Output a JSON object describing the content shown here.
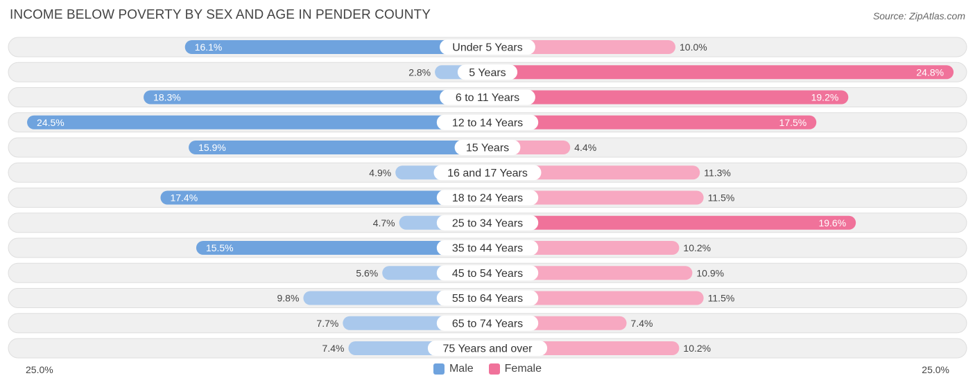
{
  "title": "INCOME BELOW POVERTY BY SEX AND AGE IN PENDER COUNTY",
  "source": "Source: ZipAtlas.com",
  "chart_data": {
    "type": "bar",
    "orientation": "horizontal-diverging",
    "title": "INCOME BELOW POVERTY BY SEX AND AGE IN PENDER COUNTY",
    "categories": [
      "Under 5 Years",
      "5 Years",
      "6 to 11 Years",
      "12 to 14 Years",
      "15 Years",
      "16 and 17 Years",
      "18 to 24 Years",
      "25 to 34 Years",
      "35 to 44 Years",
      "45 to 54 Years",
      "55 to 64 Years",
      "65 to 74 Years",
      "75 Years and over"
    ],
    "series": [
      {
        "name": "Male",
        "values": [
          16.1,
          2.8,
          18.3,
          24.5,
          15.9,
          4.9,
          17.4,
          4.7,
          15.5,
          5.6,
          9.8,
          7.7,
          7.4
        ]
      },
      {
        "name": "Female",
        "values": [
          10.0,
          24.8,
          19.2,
          17.5,
          4.4,
          11.3,
          11.5,
          19.6,
          10.2,
          10.9,
          11.5,
          7.4,
          10.2
        ]
      }
    ],
    "xlim": [
      0,
      25.0
    ],
    "axis_labels": {
      "left": "25.0%",
      "right": "25.0%"
    },
    "legend_position": "bottom-center",
    "value_suffix": "%"
  },
  "colors": {
    "male_light": "#a9c8ec",
    "male_dark": "#6fa3de",
    "female_light": "#f7a8c1",
    "female_dark": "#f0729a",
    "track": "#f0f0f0",
    "track_border": "#dedede"
  },
  "legend": {
    "male": "Male",
    "female": "Female"
  }
}
